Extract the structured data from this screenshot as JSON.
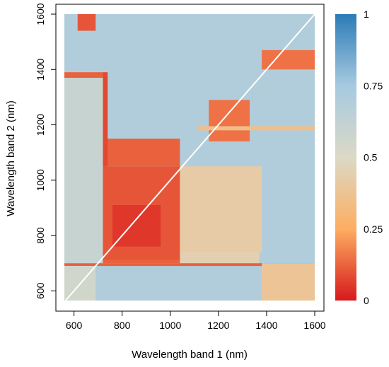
{
  "chart_data": {
    "type": "heatmap",
    "title": "",
    "xlabel": "Wavelength band 1 (nm)",
    "ylabel": "Wavelength band 2 (nm)",
    "xlim": [
      560,
      1600
    ],
    "ylim": [
      565,
      1600
    ],
    "x_ticks": [
      600,
      800,
      1000,
      1200,
      1400,
      1600
    ],
    "y_ticks": [
      600,
      800,
      1000,
      1200,
      1400,
      1600
    ],
    "color_scale": {
      "range": [
        0,
        1
      ],
      "ticks": [
        0,
        0.25,
        0.5,
        0.75,
        1
      ],
      "tick_labels": [
        "0",
        "0.25",
        "0.5",
        "0.75",
        "1"
      ],
      "colors": [
        "#d7191c",
        "#fdae61",
        "#dcd9c6",
        "#a6cae0",
        "#2c7bb6"
      ]
    },
    "legend_position": "right",
    "grid": false,
    "diagonal": {
      "from": [
        565,
        565
      ],
      "to": [
        1600,
        1600
      ],
      "color": "#ffffff"
    },
    "background_value": 0.7,
    "regions": [
      {
        "x": [
          560,
          1600
        ],
        "y": [
          690,
          700
        ],
        "value": 0.12
      },
      {
        "x": [
          700,
          1370
        ],
        "y": [
          700,
          712
        ],
        "value": 0.12
      },
      {
        "x": [
          1040,
          1370
        ],
        "y": [
          700,
          740
        ],
        "value": 0.45
      },
      {
        "x": [
          1040,
          1380
        ],
        "y": [
          740,
          1050
        ],
        "value": 0.42
      },
      {
        "x": [
          720,
          1040
        ],
        "y": [
          712,
          1050
        ],
        "value": 0.1
      },
      {
        "x": [
          720,
          1040
        ],
        "y": [
          1050,
          1150
        ],
        "value": 0.12
      },
      {
        "x": [
          720,
          740
        ],
        "y": [
          1050,
          1390
        ],
        "value": 0.08
      },
      {
        "x": [
          560,
          720
        ],
        "y": [
          1370,
          1390
        ],
        "value": 0.12
      },
      {
        "x": [
          560,
          720
        ],
        "y": [
          700,
          1370
        ],
        "value": 0.6
      },
      {
        "x": [
          560,
          690
        ],
        "y": [
          565,
          690
        ],
        "value": 0.55
      },
      {
        "x": [
          1380,
          1600
        ],
        "y": [
          565,
          700
        ],
        "value": 0.38
      },
      {
        "x": [
          1380,
          1600
        ],
        "y": [
          1400,
          1470
        ],
        "value": 0.15
      },
      {
        "x": [
          615,
          690
        ],
        "y": [
          1540,
          1600
        ],
        "value": 0.1
      },
      {
        "x": [
          1160,
          1330
        ],
        "y": [
          1140,
          1290
        ],
        "value": 0.15
      },
      {
        "x": [
          760,
          960
        ],
        "y": [
          760,
          910
        ],
        "value": 0.05
      },
      {
        "x": [
          1110,
          1600
        ],
        "y": [
          1180,
          1195
        ],
        "value": 0.35
      }
    ]
  }
}
